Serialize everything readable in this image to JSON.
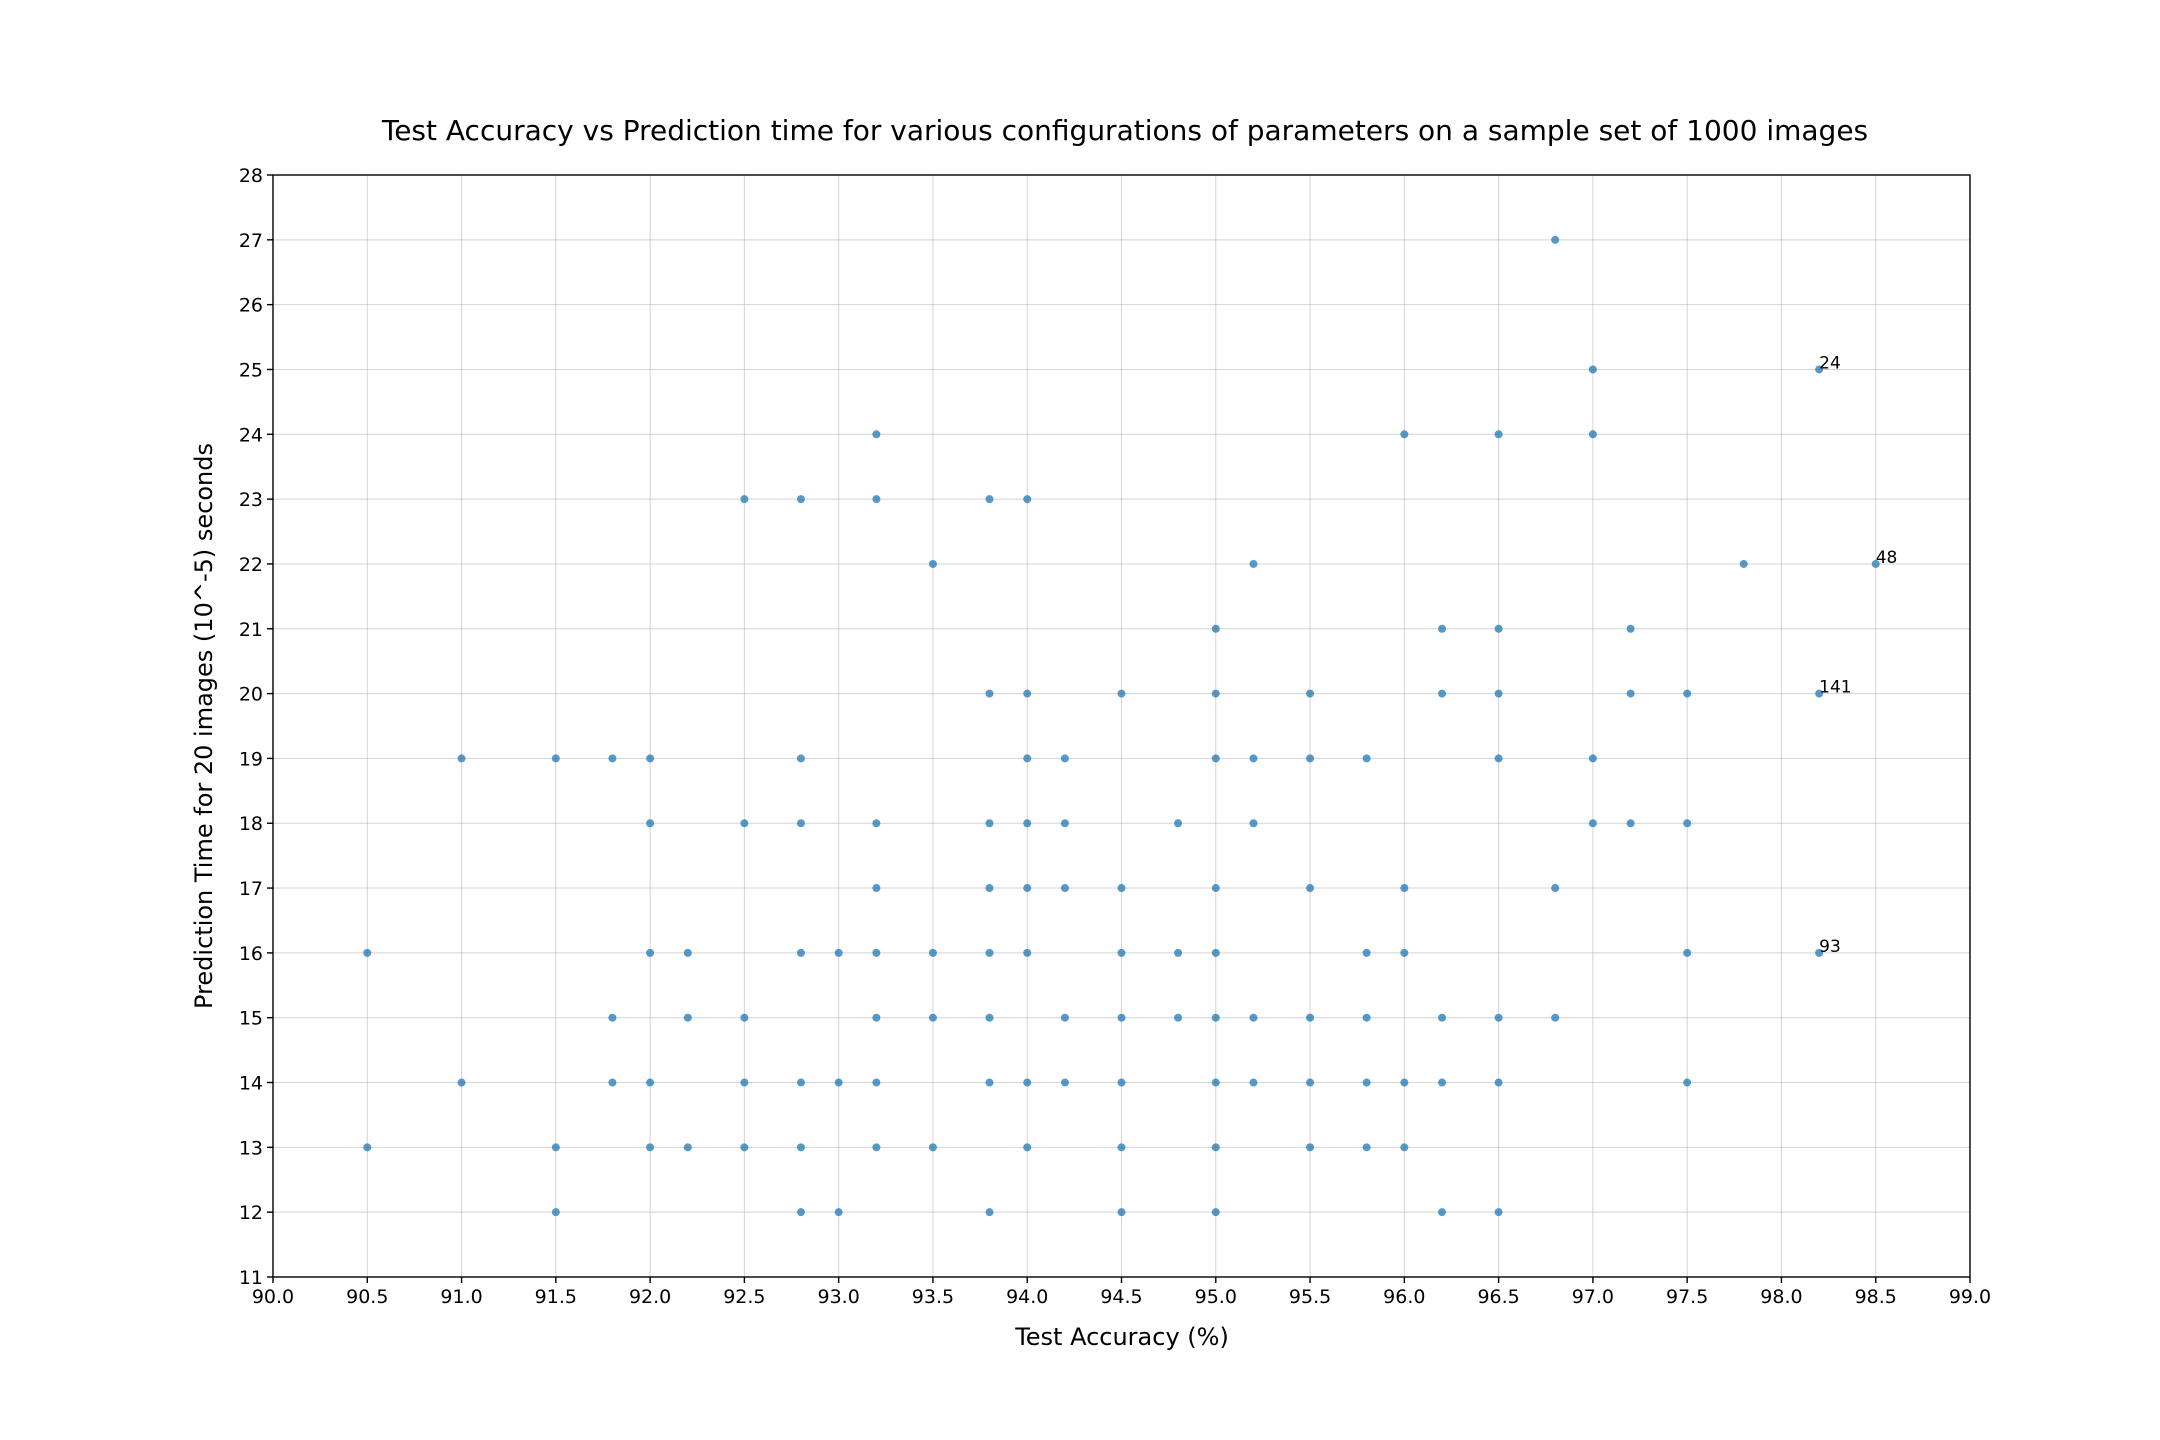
{
  "chart_data": {
    "type": "scatter",
    "title": "Test Accuracy vs Prediction time for various configurations of parameters on a sample set of 1000 images",
    "xlabel": "Test Accuracy (%)",
    "ylabel": "Prediction Time for 20 images (10^-5) seconds",
    "xlim": [
      90.0,
      99.0
    ],
    "ylim": [
      11,
      28
    ],
    "xticks": [
      "90.0",
      "90.5",
      "91.0",
      "91.5",
      "92.0",
      "92.5",
      "93.0",
      "93.5",
      "94.0",
      "94.5",
      "95.0",
      "95.5",
      "96.0",
      "96.5",
      "97.0",
      "97.5",
      "98.0",
      "98.5",
      "99.0"
    ],
    "yticks": [
      "11",
      "12",
      "13",
      "14",
      "15",
      "16",
      "17",
      "18",
      "19",
      "20",
      "21",
      "22",
      "23",
      "24",
      "25",
      "26",
      "27",
      "28"
    ],
    "grid": true,
    "marker_color": "#1f77b4",
    "points": [
      [
        90.5,
        16
      ],
      [
        90.5,
        13
      ],
      [
        91.0,
        19
      ],
      [
        91.0,
        14
      ],
      [
        91.5,
        19
      ],
      [
        91.5,
        13
      ],
      [
        91.5,
        12
      ],
      [
        91.8,
        19
      ],
      [
        91.8,
        15
      ],
      [
        91.8,
        14
      ],
      [
        92.0,
        19
      ],
      [
        92.0,
        18
      ],
      [
        92.0,
        16
      ],
      [
        92.0,
        14
      ],
      [
        92.0,
        13
      ],
      [
        92.2,
        16
      ],
      [
        92.2,
        15
      ],
      [
        92.2,
        13
      ],
      [
        92.5,
        23
      ],
      [
        92.5,
        18
      ],
      [
        92.5,
        15
      ],
      [
        92.5,
        14
      ],
      [
        92.5,
        13
      ],
      [
        92.8,
        23
      ],
      [
        92.8,
        19
      ],
      [
        92.8,
        18
      ],
      [
        92.8,
        16
      ],
      [
        92.8,
        14
      ],
      [
        92.8,
        13
      ],
      [
        92.8,
        12
      ],
      [
        93.0,
        16
      ],
      [
        93.0,
        14
      ],
      [
        93.0,
        12
      ],
      [
        93.2,
        24
      ],
      [
        93.2,
        23
      ],
      [
        93.2,
        18
      ],
      [
        93.2,
        17
      ],
      [
        93.2,
        16
      ],
      [
        93.2,
        15
      ],
      [
        93.2,
        14
      ],
      [
        93.2,
        13
      ],
      [
        93.5,
        22
      ],
      [
        93.5,
        16
      ],
      [
        93.5,
        15
      ],
      [
        93.5,
        13
      ],
      [
        93.8,
        23
      ],
      [
        93.8,
        20
      ],
      [
        93.8,
        18
      ],
      [
        93.8,
        17
      ],
      [
        93.8,
        16
      ],
      [
        93.8,
        15
      ],
      [
        93.8,
        14
      ],
      [
        93.8,
        12
      ],
      [
        94.0,
        23
      ],
      [
        94.0,
        20
      ],
      [
        94.0,
        19
      ],
      [
        94.0,
        18
      ],
      [
        94.0,
        17
      ],
      [
        94.0,
        16
      ],
      [
        94.0,
        14
      ],
      [
        94.0,
        13
      ],
      [
        94.2,
        19
      ],
      [
        94.2,
        18
      ],
      [
        94.2,
        17
      ],
      [
        94.2,
        15
      ],
      [
        94.2,
        14
      ],
      [
        94.5,
        20
      ],
      [
        94.5,
        17
      ],
      [
        94.5,
        16
      ],
      [
        94.5,
        15
      ],
      [
        94.5,
        14
      ],
      [
        94.5,
        13
      ],
      [
        94.5,
        12
      ],
      [
        94.8,
        18
      ],
      [
        94.8,
        16
      ],
      [
        94.8,
        15
      ],
      [
        95.0,
        21
      ],
      [
        95.0,
        20
      ],
      [
        95.0,
        19
      ],
      [
        95.0,
        17
      ],
      [
        95.0,
        16
      ],
      [
        95.0,
        15
      ],
      [
        95.0,
        14
      ],
      [
        95.0,
        13
      ],
      [
        95.0,
        12
      ],
      [
        95.2,
        22
      ],
      [
        95.2,
        19
      ],
      [
        95.2,
        18
      ],
      [
        95.2,
        15
      ],
      [
        95.2,
        14
      ],
      [
        95.5,
        20
      ],
      [
        95.5,
        19
      ],
      [
        95.5,
        17
      ],
      [
        95.5,
        15
      ],
      [
        95.5,
        14
      ],
      [
        95.5,
        13
      ],
      [
        95.8,
        19
      ],
      [
        95.8,
        16
      ],
      [
        95.8,
        15
      ],
      [
        95.8,
        14
      ],
      [
        95.8,
        13
      ],
      [
        96.0,
        24
      ],
      [
        96.0,
        17
      ],
      [
        96.0,
        16
      ],
      [
        96.0,
        14
      ],
      [
        96.0,
        13
      ],
      [
        96.2,
        21
      ],
      [
        96.2,
        20
      ],
      [
        96.2,
        15
      ],
      [
        96.2,
        14
      ],
      [
        96.2,
        12
      ],
      [
        96.5,
        24
      ],
      [
        96.5,
        21
      ],
      [
        96.5,
        20
      ],
      [
        96.5,
        19
      ],
      [
        96.5,
        15
      ],
      [
        96.5,
        14
      ],
      [
        96.5,
        12
      ],
      [
        96.8,
        27
      ],
      [
        96.8,
        17
      ],
      [
        96.8,
        15
      ],
      [
        97.0,
        25
      ],
      [
        97.0,
        24
      ],
      [
        97.0,
        19
      ],
      [
        97.0,
        18
      ],
      [
        97.2,
        21
      ],
      [
        97.2,
        20
      ],
      [
        97.2,
        18
      ],
      [
        97.5,
        20
      ],
      [
        97.5,
        18
      ],
      [
        97.5,
        16
      ],
      [
        97.5,
        14
      ],
      [
        97.8,
        22
      ],
      [
        98.2,
        25
      ],
      [
        98.2,
        20
      ],
      [
        98.2,
        16
      ],
      [
        98.5,
        22
      ]
    ],
    "annotations": [
      {
        "x": 98.2,
        "y": 25,
        "text": "24"
      },
      {
        "x": 98.5,
        "y": 22,
        "text": "48"
      },
      {
        "x": 98.2,
        "y": 20,
        "text": "141"
      },
      {
        "x": 98.2,
        "y": 16,
        "text": "93"
      }
    ]
  }
}
